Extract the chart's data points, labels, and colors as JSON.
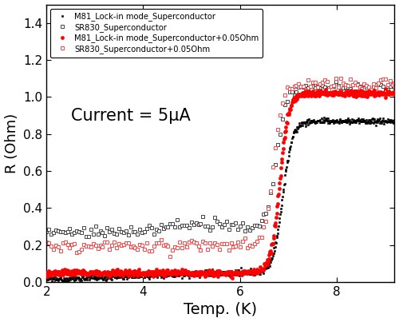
{
  "title": "Current = 5μA",
  "xlabel": "Temp. (K)",
  "ylabel": "R (Ohm)",
  "xlim": [
    2,
    9.2
  ],
  "ylim": [
    0,
    1.5
  ],
  "yticks": [
    0.0,
    0.2,
    0.4,
    0.6,
    0.8,
    1.0,
    1.2,
    1.4
  ],
  "xticks": [
    2,
    4,
    6,
    8
  ],
  "legend_labels": [
    "M81_Lock-in mode_Superconductor",
    "SR830_Superconductor",
    "M81_Lock-in mode_Superconductor+0.05Ohm",
    "SR830_Superconductor+0.05Ohm"
  ]
}
